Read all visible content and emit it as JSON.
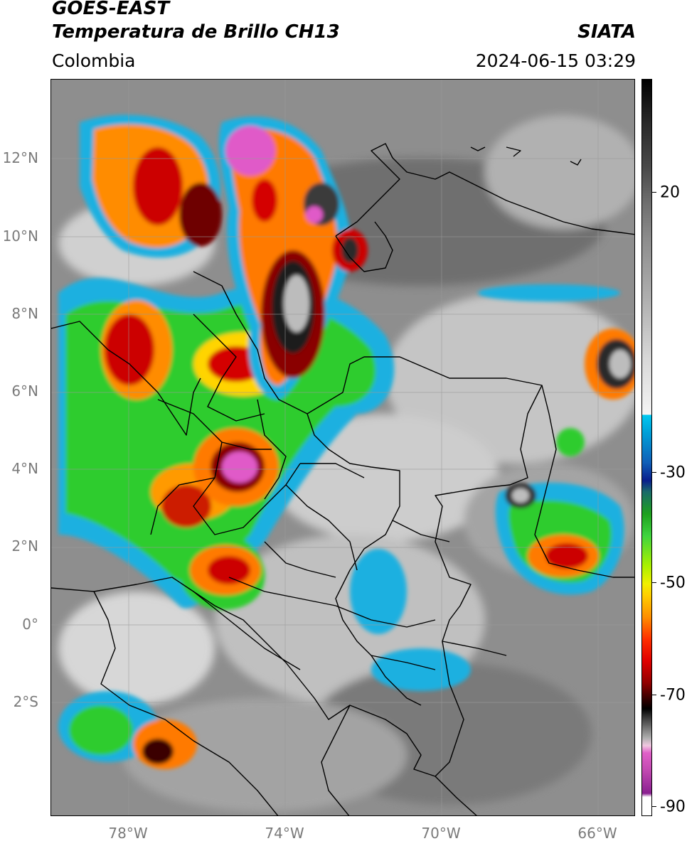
{
  "header": {
    "satellite": "GOES-EAST",
    "product": "Temperatura de Brillo CH13",
    "organization": "SIATA",
    "region": "Colombia",
    "timestamp": "2024-06-15 03:29"
  },
  "map": {
    "latitude_labels": [
      "12°N",
      "10°N",
      "8°N",
      "6°N",
      "4°N",
      "2°N",
      "0°",
      "2°S"
    ],
    "longitude_labels": [
      "78°W",
      "74°W",
      "70°W",
      "66°W"
    ],
    "colorbar_labels": [
      "20",
      "-30",
      "-50",
      "-70",
      "-90"
    ],
    "colors": {
      "warm_cloud_gray": "#8c8c8c",
      "cold_cyan": "#00b7e6",
      "cold_blue": "#1b3fa0",
      "green": "#2fd22f",
      "yellow": "#ffe800",
      "orange": "#ff8c00",
      "red": "#d40000",
      "deep_red": "#6e0000",
      "black": "#111111",
      "magenta": "#e05ac8"
    }
  }
}
